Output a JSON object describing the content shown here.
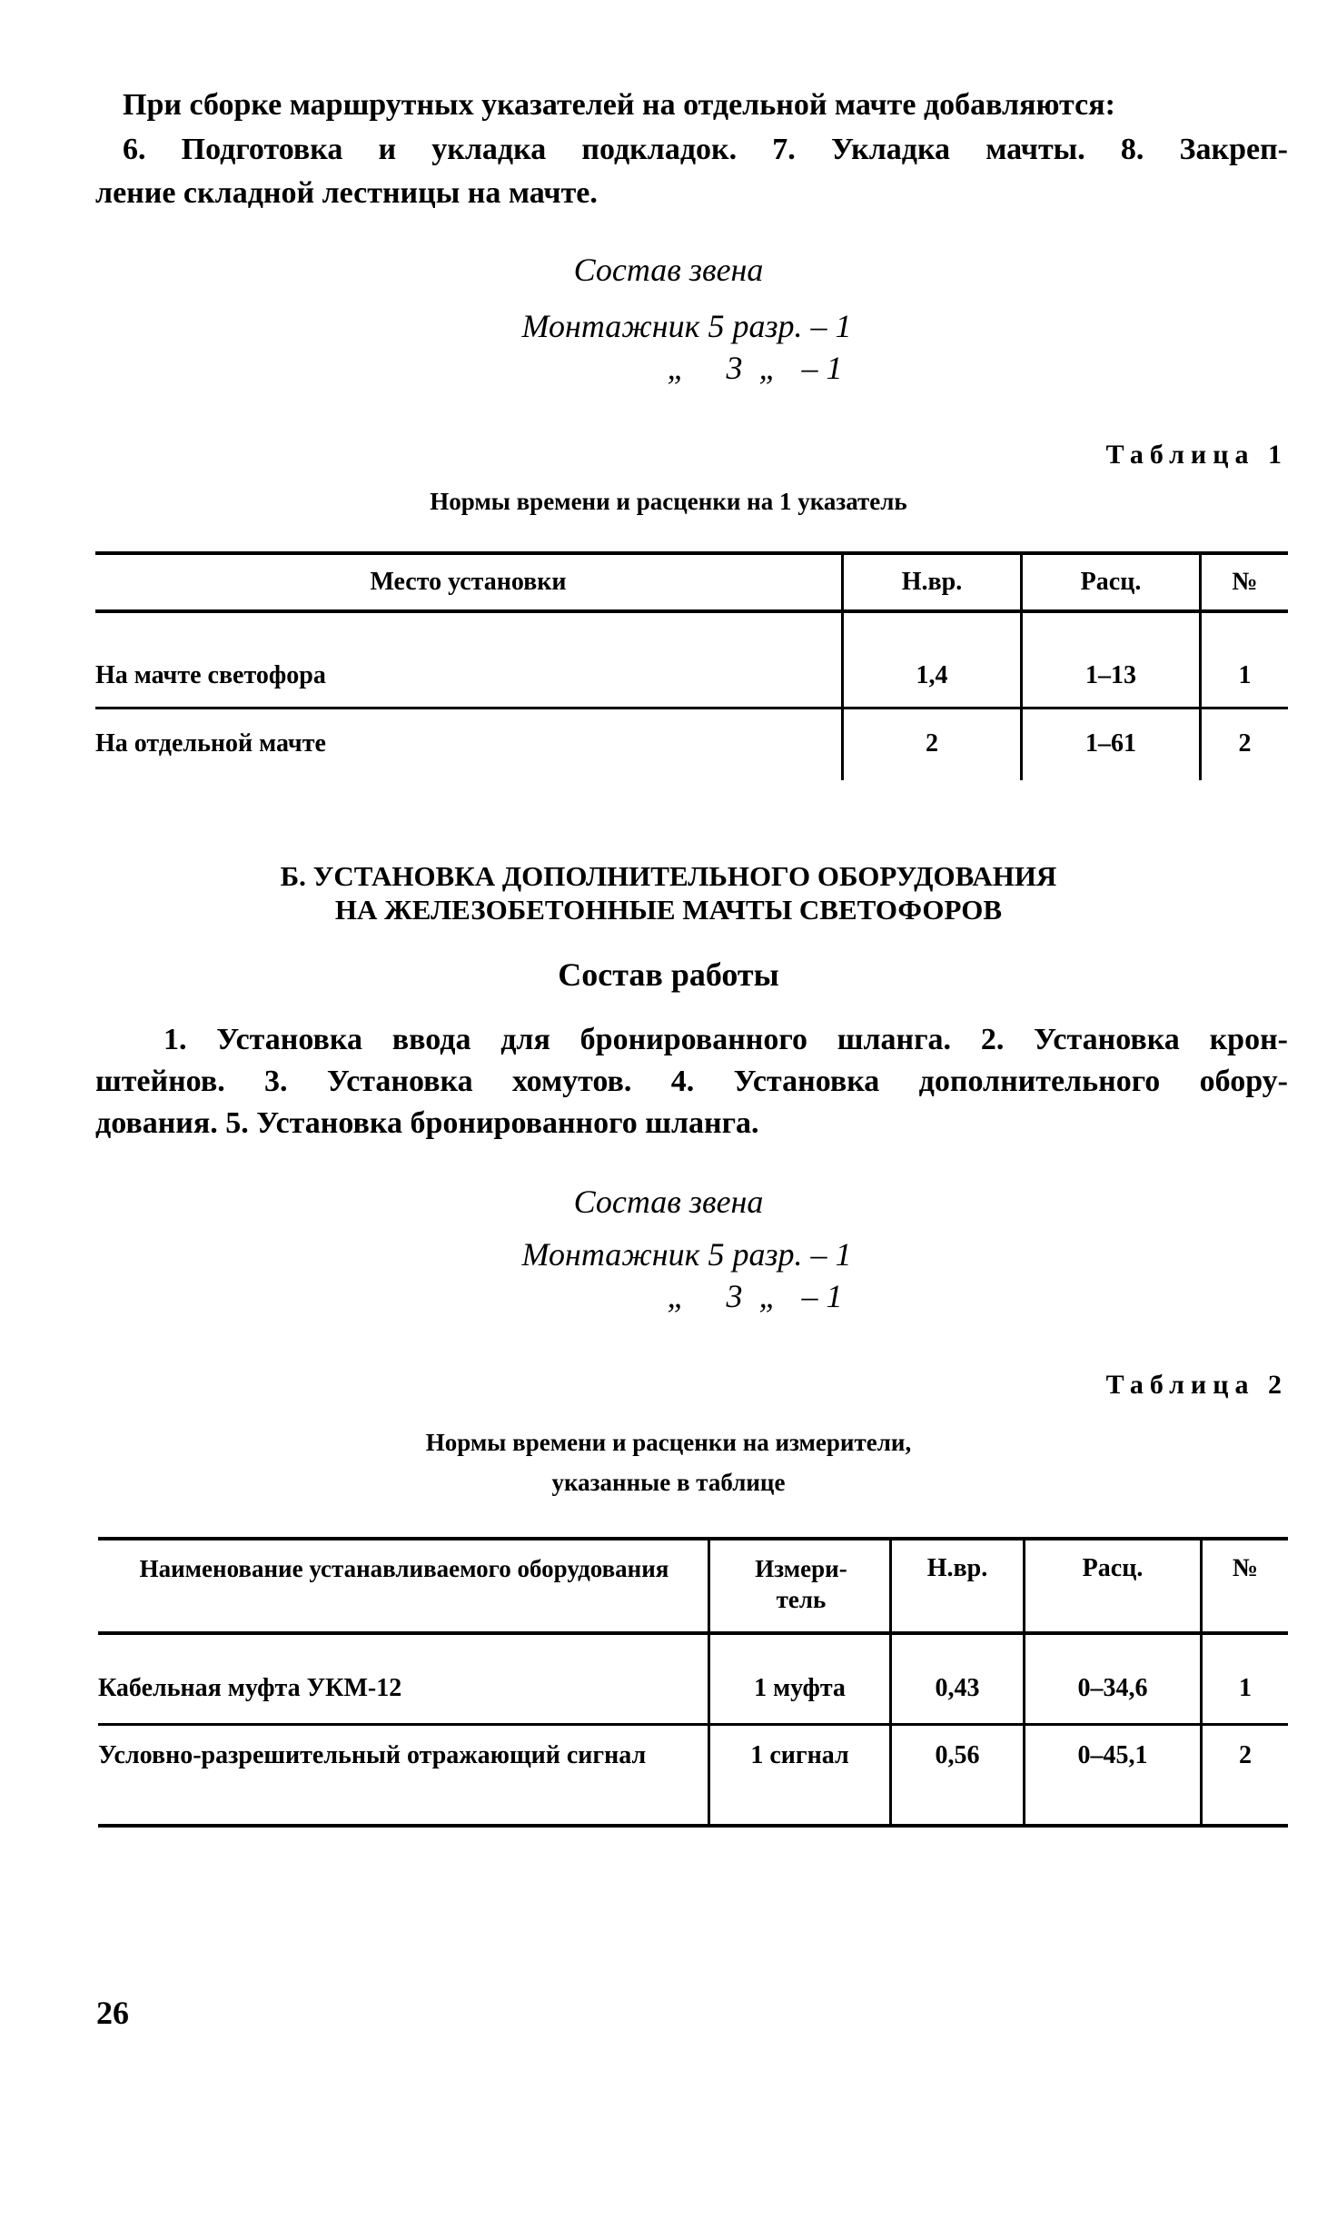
{
  "intro": {
    "line1": "При сборке маршрутных указателей на отдельной мачте добавляются:",
    "line2": "6. Подготовка и укладка подкладок. 7. Укладка мачты. 8. Закреп-",
    "line3": "ление складной лестницы на мачте."
  },
  "crew1": {
    "title": "Состав звена",
    "row1": "Монтажник 5 разр. – 1",
    "row2": "„     3  „   – 1"
  },
  "table1": {
    "label": "Таблица 1",
    "caption": "Нормы времени и расценки на 1 указатель",
    "headers": [
      "Место установки",
      "Н.вр.",
      "Расц.",
      "№"
    ],
    "rows": [
      [
        "На мачте светофора",
        "1,4",
        "1–13",
        "1"
      ],
      [
        "На отдельной мачте",
        "2",
        "1–61",
        "2"
      ]
    ]
  },
  "section_b": {
    "heading1": "Б. УСТАНОВКА ДОПОЛНИТЕЛЬНОГО ОБОРУДОВАНИЯ",
    "heading2": "НА ЖЕЛЕЗОБЕТОННЫЕ МАЧТЫ СВЕТОФОРОВ",
    "work_title": "Состав работы",
    "line1": "1. Установка ввода для бронированного шланга. 2. Установка крон-",
    "line2": "штейнов. 3. Установка хомутов. 4. Установка дополнительного обору-",
    "line3": "дования. 5. Установка бронированного шланга."
  },
  "crew2": {
    "title": "Состав звена",
    "row1": "Монтажник 5 разр. – 1",
    "row2": "„     3  „   – 1"
  },
  "table2": {
    "label": "Таблица 2",
    "caption1": "Нормы времени и расценки на измерители,",
    "caption2": "указанные в таблице",
    "headers": [
      "Наименование устанавливаемого оборудования",
      "Измери-тель",
      "Н.вр.",
      "Расц.",
      "№"
    ],
    "rows": [
      [
        "Кабельная муфта УКМ-12",
        "1 муфта",
        "0,43",
        "0–34,6",
        "1"
      ],
      [
        "Условно-разрешительный отражающий сигнал",
        "1 сигнал",
        "0,56",
        "0–45,1",
        "2"
      ]
    ]
  },
  "page_number": "26"
}
